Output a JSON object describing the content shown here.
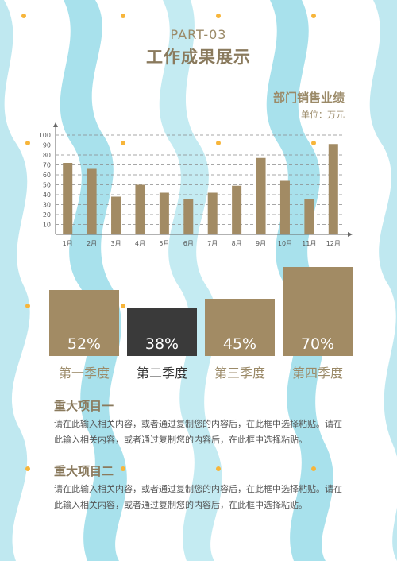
{
  "header": {
    "part": "PART-03",
    "title": "工作成果展示"
  },
  "chart_data": {
    "type": "bar",
    "title": "部门销售业绩",
    "unit": "单位：万元",
    "categories": [
      "1月",
      "2月",
      "3月",
      "4月",
      "5月",
      "6月",
      "7月",
      "8月",
      "9月",
      "10月",
      "11月",
      "12月"
    ],
    "values": [
      72,
      66,
      38,
      50,
      42,
      36,
      42,
      49,
      77,
      54,
      36,
      91
    ],
    "yticks": [
      10,
      20,
      30,
      40,
      50,
      60,
      70,
      80,
      90,
      100
    ],
    "ylim": [
      0,
      100
    ],
    "grid": true,
    "bar_color": "#a28b64"
  },
  "quarters": [
    {
      "pct_value": 0.52,
      "pct": "52%",
      "label": "第一季度",
      "color": "#a28b64"
    },
    {
      "pct_value": 0.38,
      "pct": "38%",
      "label": "第二季度",
      "color": "#3a3a3a"
    },
    {
      "pct_value": 0.45,
      "pct": "45%",
      "label": "第三季度",
      "color": "#a28b64"
    },
    {
      "pct_value": 0.7,
      "pct": "70%",
      "label": "第四季度",
      "color": "#a28b64"
    }
  ],
  "projects": [
    {
      "title": "重大项目一",
      "body": "请在此输入相关内容，或者通过复制您的内容后，在此框中选择粘贴。请在此输入相关内容，或者通过复制您的内容后，在此框中选择粘贴。"
    },
    {
      "title": "重大项目二",
      "body": "请在此输入相关内容，或者通过复制您的内容后，在此框中选择粘贴。请在此输入相关内容，或者通过复制您的内容后，在此框中选择粘贴。"
    }
  ]
}
